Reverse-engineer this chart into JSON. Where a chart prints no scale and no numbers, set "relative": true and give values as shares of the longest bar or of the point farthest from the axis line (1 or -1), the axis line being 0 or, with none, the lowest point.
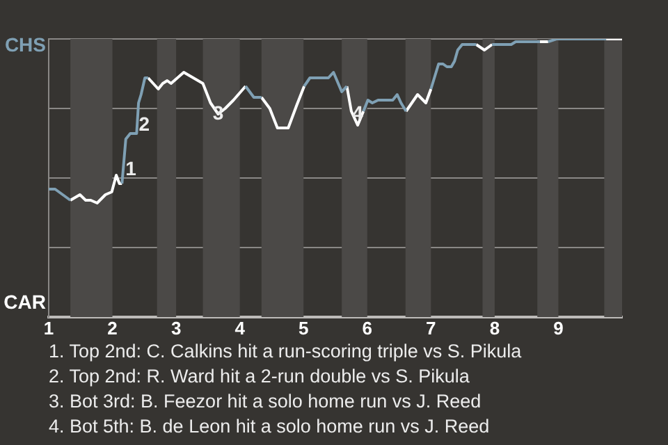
{
  "chart_data": {
    "type": "line",
    "relative": true,
    "series": [
      {
        "color": "#7fa0b4",
        "x": [
          1,
          1.1,
          1.34,
          1.49,
          1.58,
          1.66,
          1.76,
          1.89,
          1.99,
          2.06,
          2.11,
          2.15,
          2.21,
          2.28,
          2.38,
          2.41,
          2.45,
          2.51,
          2.56,
          2.72,
          2.79,
          2.86,
          2.92,
          3.12,
          3.42,
          3.54,
          3.66,
          3.77,
          3.9,
          4.09,
          4.22,
          4.34,
          4.47,
          4.59,
          4.76,
          4.89,
          5.01,
          5.1,
          5.39,
          5.47,
          5.6,
          5.68,
          5.75,
          5.85,
          5.94,
          6.01,
          6.08,
          6.17,
          6.4,
          6.47,
          6.53,
          6.61,
          6.7,
          6.79,
          6.92,
          7,
          7.12,
          7.19,
          7.25,
          7.32,
          7.37,
          7.42,
          7.49,
          7.71,
          7.84,
          7.96,
          8.26,
          8.33,
          8.71,
          8.78,
          8.84,
          8.97,
          9.75
        ],
        "values": [
          0.46,
          0.46,
          0.42,
          null,
          null,
          null,
          null,
          null,
          null,
          null,
          null,
          0.48,
          0.64,
          0.66,
          0.66,
          0.77,
          0.8,
          0.86,
          0.86,
          null,
          null,
          null,
          null,
          null,
          null,
          null,
          null,
          null,
          null,
          0.83,
          0.79,
          0.79,
          null,
          null,
          null,
          null,
          0.83,
          0.86,
          0.86,
          0.88,
          0.81,
          0.83,
          null,
          null,
          0.74,
          0.78,
          0.77,
          0.78,
          0.78,
          0.8,
          0.77,
          0.74,
          null,
          null,
          null,
          0.82,
          0.91,
          0.91,
          0.9,
          0.9,
          0.92,
          0.96,
          0.98,
          0.98,
          null,
          0.98,
          0.98,
          0.99,
          0.99,
          null,
          0.99,
          1,
          1
        ]
      },
      {
        "color": "#ffffff",
        "x": [
          1.34,
          1.49,
          1.58,
          1.66,
          1.76,
          1.89,
          1.99,
          2.06,
          2.11,
          2.15,
          2.21,
          2.28,
          2.38,
          2.41,
          2.45,
          2.51,
          2.56,
          2.72,
          2.79,
          2.86,
          2.92,
          3.12,
          3.42,
          3.54,
          3.66,
          3.77,
          3.9,
          4.09,
          4.22,
          4.34,
          4.47,
          4.59,
          4.76,
          4.89,
          5.01,
          5.1,
          5.39,
          5.47,
          5.6,
          5.68,
          5.75,
          5.85,
          5.94,
          6.01,
          6.08,
          6.17,
          6.4,
          6.47,
          6.53,
          6.61,
          6.7,
          6.79,
          6.92,
          7,
          7.12,
          7.19,
          7.25,
          7.32,
          7.37,
          7.42,
          7.49,
          7.71,
          7.84,
          7.96,
          8.26,
          8.33,
          8.71,
          8.84,
          8.97,
          9.75,
          10
        ],
        "values": [
          0.42,
          0.44,
          0.42,
          0.42,
          0.41,
          0.44,
          0.45,
          0.51,
          0.48,
          0.48,
          null,
          null,
          null,
          null,
          null,
          null,
          0.86,
          0.82,
          0.84,
          0.85,
          0.84,
          0.88,
          0.84,
          0.77,
          0.73,
          0.75,
          0.78,
          0.83,
          null,
          0.79,
          0.75,
          0.68,
          0.68,
          0.76,
          0.83,
          null,
          null,
          null,
          null,
          0.83,
          0.74,
          0.69,
          0.74,
          null,
          null,
          null,
          null,
          null,
          null,
          0.74,
          0.77,
          0.8,
          0.77,
          0.82,
          null,
          null,
          null,
          null,
          null,
          null,
          null,
          0.98,
          0.96,
          0.98,
          null,
          null,
          0.99,
          0.99,
          null,
          1,
          1
        ]
      }
    ],
    "xlim": [
      1,
      10
    ],
    "xticks": [
      1,
      2,
      3,
      4,
      5,
      6,
      7,
      8,
      9
    ],
    "grid": "y",
    "marker": "none",
    "line_style": "solid",
    "bands": [
      {
        "axis": "x",
        "from": 1.34,
        "to": 2,
        "color": "#4b4947"
      },
      {
        "axis": "x",
        "from": 2.7,
        "to": 3,
        "color": "#4b4947"
      },
      {
        "axis": "x",
        "from": 3.42,
        "to": 4,
        "color": "#4b4947"
      },
      {
        "axis": "x",
        "from": 4.34,
        "to": 5,
        "color": "#4b4947"
      },
      {
        "axis": "x",
        "from": 5.6,
        "to": 6,
        "color": "#4b4947"
      },
      {
        "axis": "x",
        "from": 6.6,
        "to": 7,
        "color": "#4b4947"
      },
      {
        "axis": "x",
        "from": 7.81,
        "to": 8,
        "color": "#4b4947"
      },
      {
        "axis": "x",
        "from": 8.67,
        "to": 9,
        "color": "#4b4947"
      },
      {
        "axis": "x",
        "from": 9.72,
        "to": 10,
        "color": "#4b4947"
      }
    ],
    "annotations": [
      "CHS",
      "CAR",
      {
        "text": "1",
        "x": 2.29,
        "y": 0.53
      },
      {
        "text": "2",
        "x": 2.5,
        "y": 0.69
      },
      {
        "text": "3",
        "x": 3.66,
        "y": 0.73
      },
      {
        "text": "4",
        "x": 5.85,
        "y": 0.73
      },
      "1. Top 2nd: C. Calkins hit a run-scoring triple vs S. Pikula",
      "2. Top 2nd: R. Ward hit a 2-run double vs S. Pikula",
      "3. Bot 3rd: B. Feezor hit a solo home run vs J. Reed",
      "4. Bot 5th: B. de Leon hit a solo home run vs J. Reed"
    ]
  }
}
